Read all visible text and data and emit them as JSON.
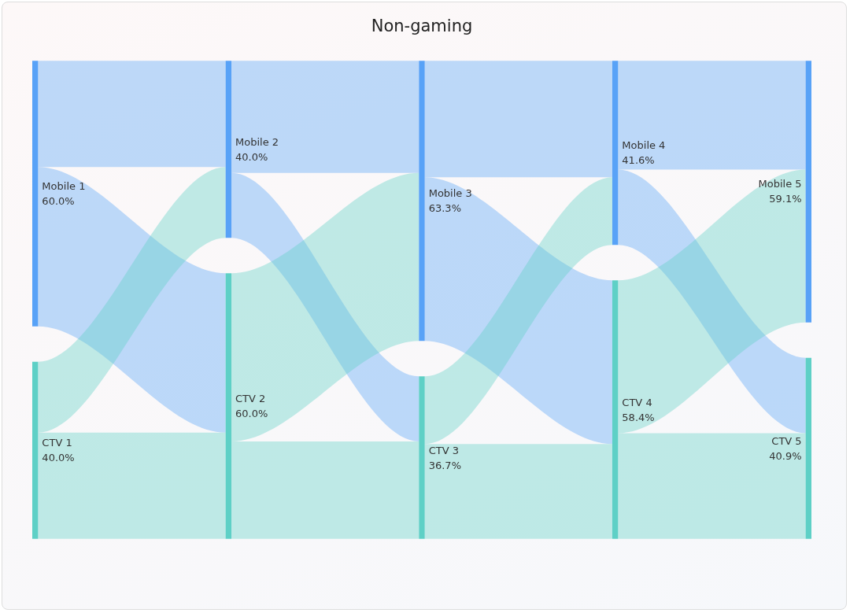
{
  "chart_data": {
    "type": "other",
    "title": "Non-gaming",
    "categories": [
      "Mobile 1",
      "CTV 1",
      "Mobile 2",
      "CTV 2",
      "Mobile 3",
      "CTV 3",
      "Mobile 4",
      "CTV 4",
      "Mobile 5",
      "CTV 5"
    ],
    "values": [
      60.0,
      40.0,
      40.0,
      60.0,
      63.3,
      36.7,
      41.6,
      58.4,
      59.1,
      40.9
    ],
    "value_labels": [
      "60.0%",
      "40.0%",
      "40.0%",
      "60.0%",
      "63.3%",
      "36.7%",
      "41.6%",
      "58.4%",
      "59.1%",
      "40.9%"
    ],
    "colors": [
      "#58a2f7",
      "#5ed0c6",
      "#58a2f7",
      "#5ed0c6",
      "#58a2f7",
      "#5ed0c6",
      "#58a2f7",
      "#5ed0c6",
      "#58a2f7",
      "#5ed0c6"
    ]
  }
}
